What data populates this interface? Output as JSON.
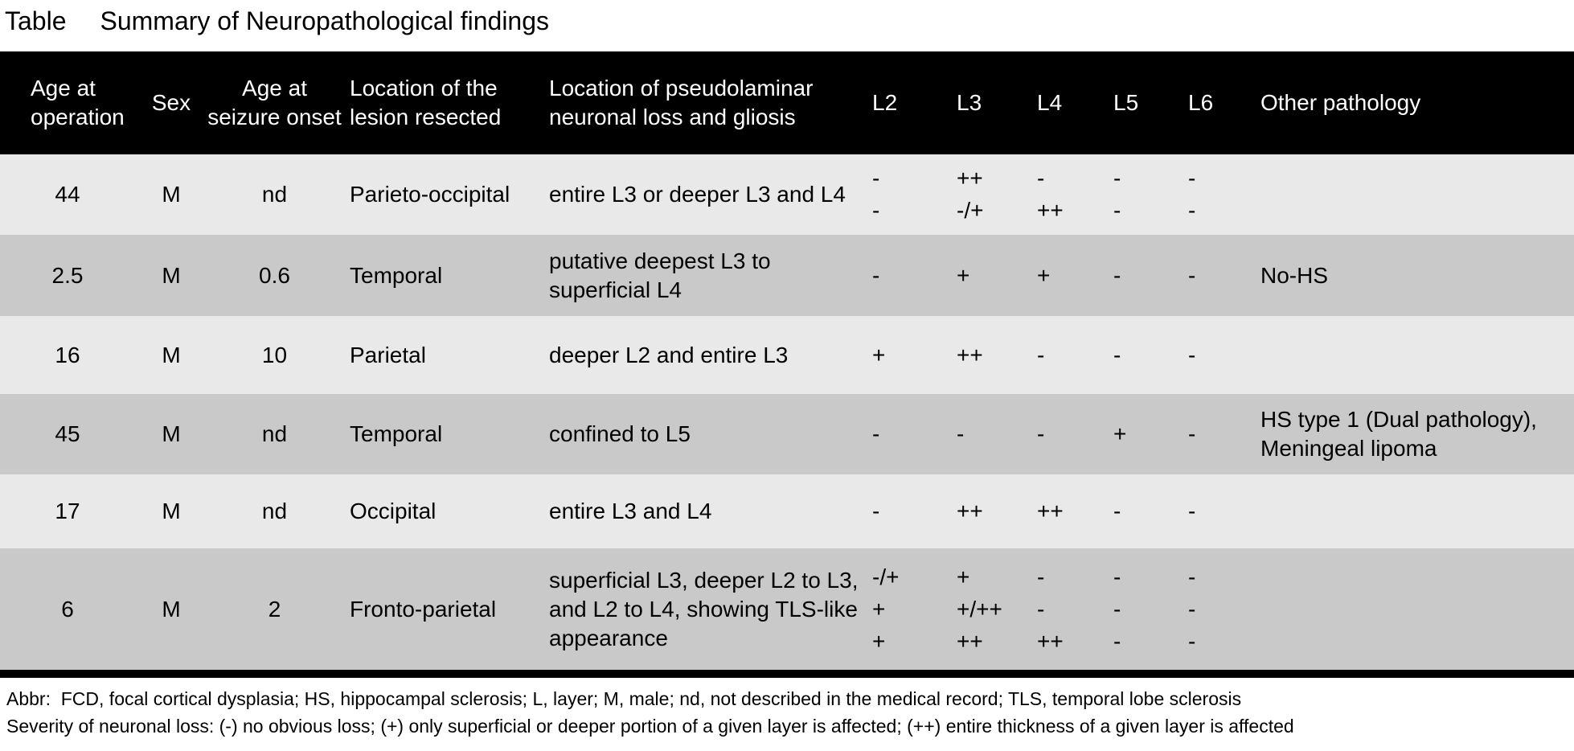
{
  "title": {
    "label": "Table",
    "text": "Summary of Neuropathological findings"
  },
  "colors": {
    "header_bg": "#000000",
    "header_text": "#ffffff",
    "row_light": "#e9e9e9",
    "row_dark": "#c9c9c9",
    "body_text": "#000000"
  },
  "table": {
    "columns": [
      {
        "key": "age_op",
        "label": "Age at operation"
      },
      {
        "key": "sex",
        "label": "Sex"
      },
      {
        "key": "age_onset",
        "label": "Age at seizure onset"
      },
      {
        "key": "lesion",
        "label": "Location of the lesion resected"
      },
      {
        "key": "pseudolaminar",
        "label": "Location of pseudolaminar neuronal loss and gliosis"
      },
      {
        "key": "L2",
        "label": "L2"
      },
      {
        "key": "L3",
        "label": "L3"
      },
      {
        "key": "L4",
        "label": "L4"
      },
      {
        "key": "L5",
        "label": "L5"
      },
      {
        "key": "L6",
        "label": "L6"
      },
      {
        "key": "other",
        "label": "Other pathology"
      }
    ],
    "rows": [
      {
        "age_op": "44",
        "sex": "M",
        "age_onset": "nd",
        "lesion": "Parieto-occipital",
        "pseudolaminar": "entire L3 or deeper L3 and L4",
        "L2": [
          "-",
          "-"
        ],
        "L3": [
          "++",
          "-/+"
        ],
        "L4": [
          "-",
          "++"
        ],
        "L5": [
          "-",
          "-"
        ],
        "L6": [
          "-",
          "-"
        ],
        "other": ""
      },
      {
        "age_op": "2.5",
        "sex": "M",
        "age_onset": "0.6",
        "lesion": "Temporal",
        "pseudolaminar": "putative deepest L3 to superficial L4",
        "L2": [
          "-"
        ],
        "L3": [
          "+"
        ],
        "L4": [
          "+"
        ],
        "L5": [
          "-"
        ],
        "L6": [
          "-"
        ],
        "other": "No-HS"
      },
      {
        "age_op": "16",
        "sex": "M",
        "age_onset": "10",
        "lesion": "Parietal",
        "pseudolaminar": "deeper L2 and entire L3",
        "L2": [
          "+"
        ],
        "L3": [
          "++"
        ],
        "L4": [
          "-"
        ],
        "L5": [
          "-"
        ],
        "L6": [
          "-"
        ],
        "other": ""
      },
      {
        "age_op": "45",
        "sex": "M",
        "age_onset": "nd",
        "lesion": "Temporal",
        "pseudolaminar": "confined to L5",
        "L2": [
          "-"
        ],
        "L3": [
          "-"
        ],
        "L4": [
          "-"
        ],
        "L5": [
          "+"
        ],
        "L6": [
          "-"
        ],
        "other": "HS type 1 (Dual pathology), Meningeal lipoma"
      },
      {
        "age_op": "17",
        "sex": "M",
        "age_onset": "nd",
        "lesion": "Occipital",
        "pseudolaminar": "entire L3 and L4",
        "L2": [
          "-"
        ],
        "L3": [
          "++"
        ],
        "L4": [
          "++"
        ],
        "L5": [
          "-"
        ],
        "L6": [
          "-"
        ],
        "other": ""
      },
      {
        "age_op": "6",
        "sex": "M",
        "age_onset": "2",
        "lesion": "Fronto-parietal",
        "pseudolaminar": "superficial L3, deeper L2 to L3, and L2 to L4, showing TLS-like appearance",
        "L2": [
          "-/+",
          "+",
          "+"
        ],
        "L3": [
          "+",
          "+/++",
          "++"
        ],
        "L4": [
          "-",
          "-",
          "++"
        ],
        "L5": [
          "-",
          "-",
          "-"
        ],
        "L6": [
          "-",
          "-",
          "-"
        ],
        "other": ""
      }
    ]
  },
  "footnotes": [
    "Abbr:  FCD, focal cortical dysplasia; HS, hippocampal sclerosis; L, layer; M, male; nd, not described in the medical record; TLS, temporal lobe sclerosis",
    "Severity of neuronal loss: (-) no obvious loss; (+) only superficial or deeper portion of a given layer is affected; (++) entire thickness of a given layer is affected"
  ]
}
